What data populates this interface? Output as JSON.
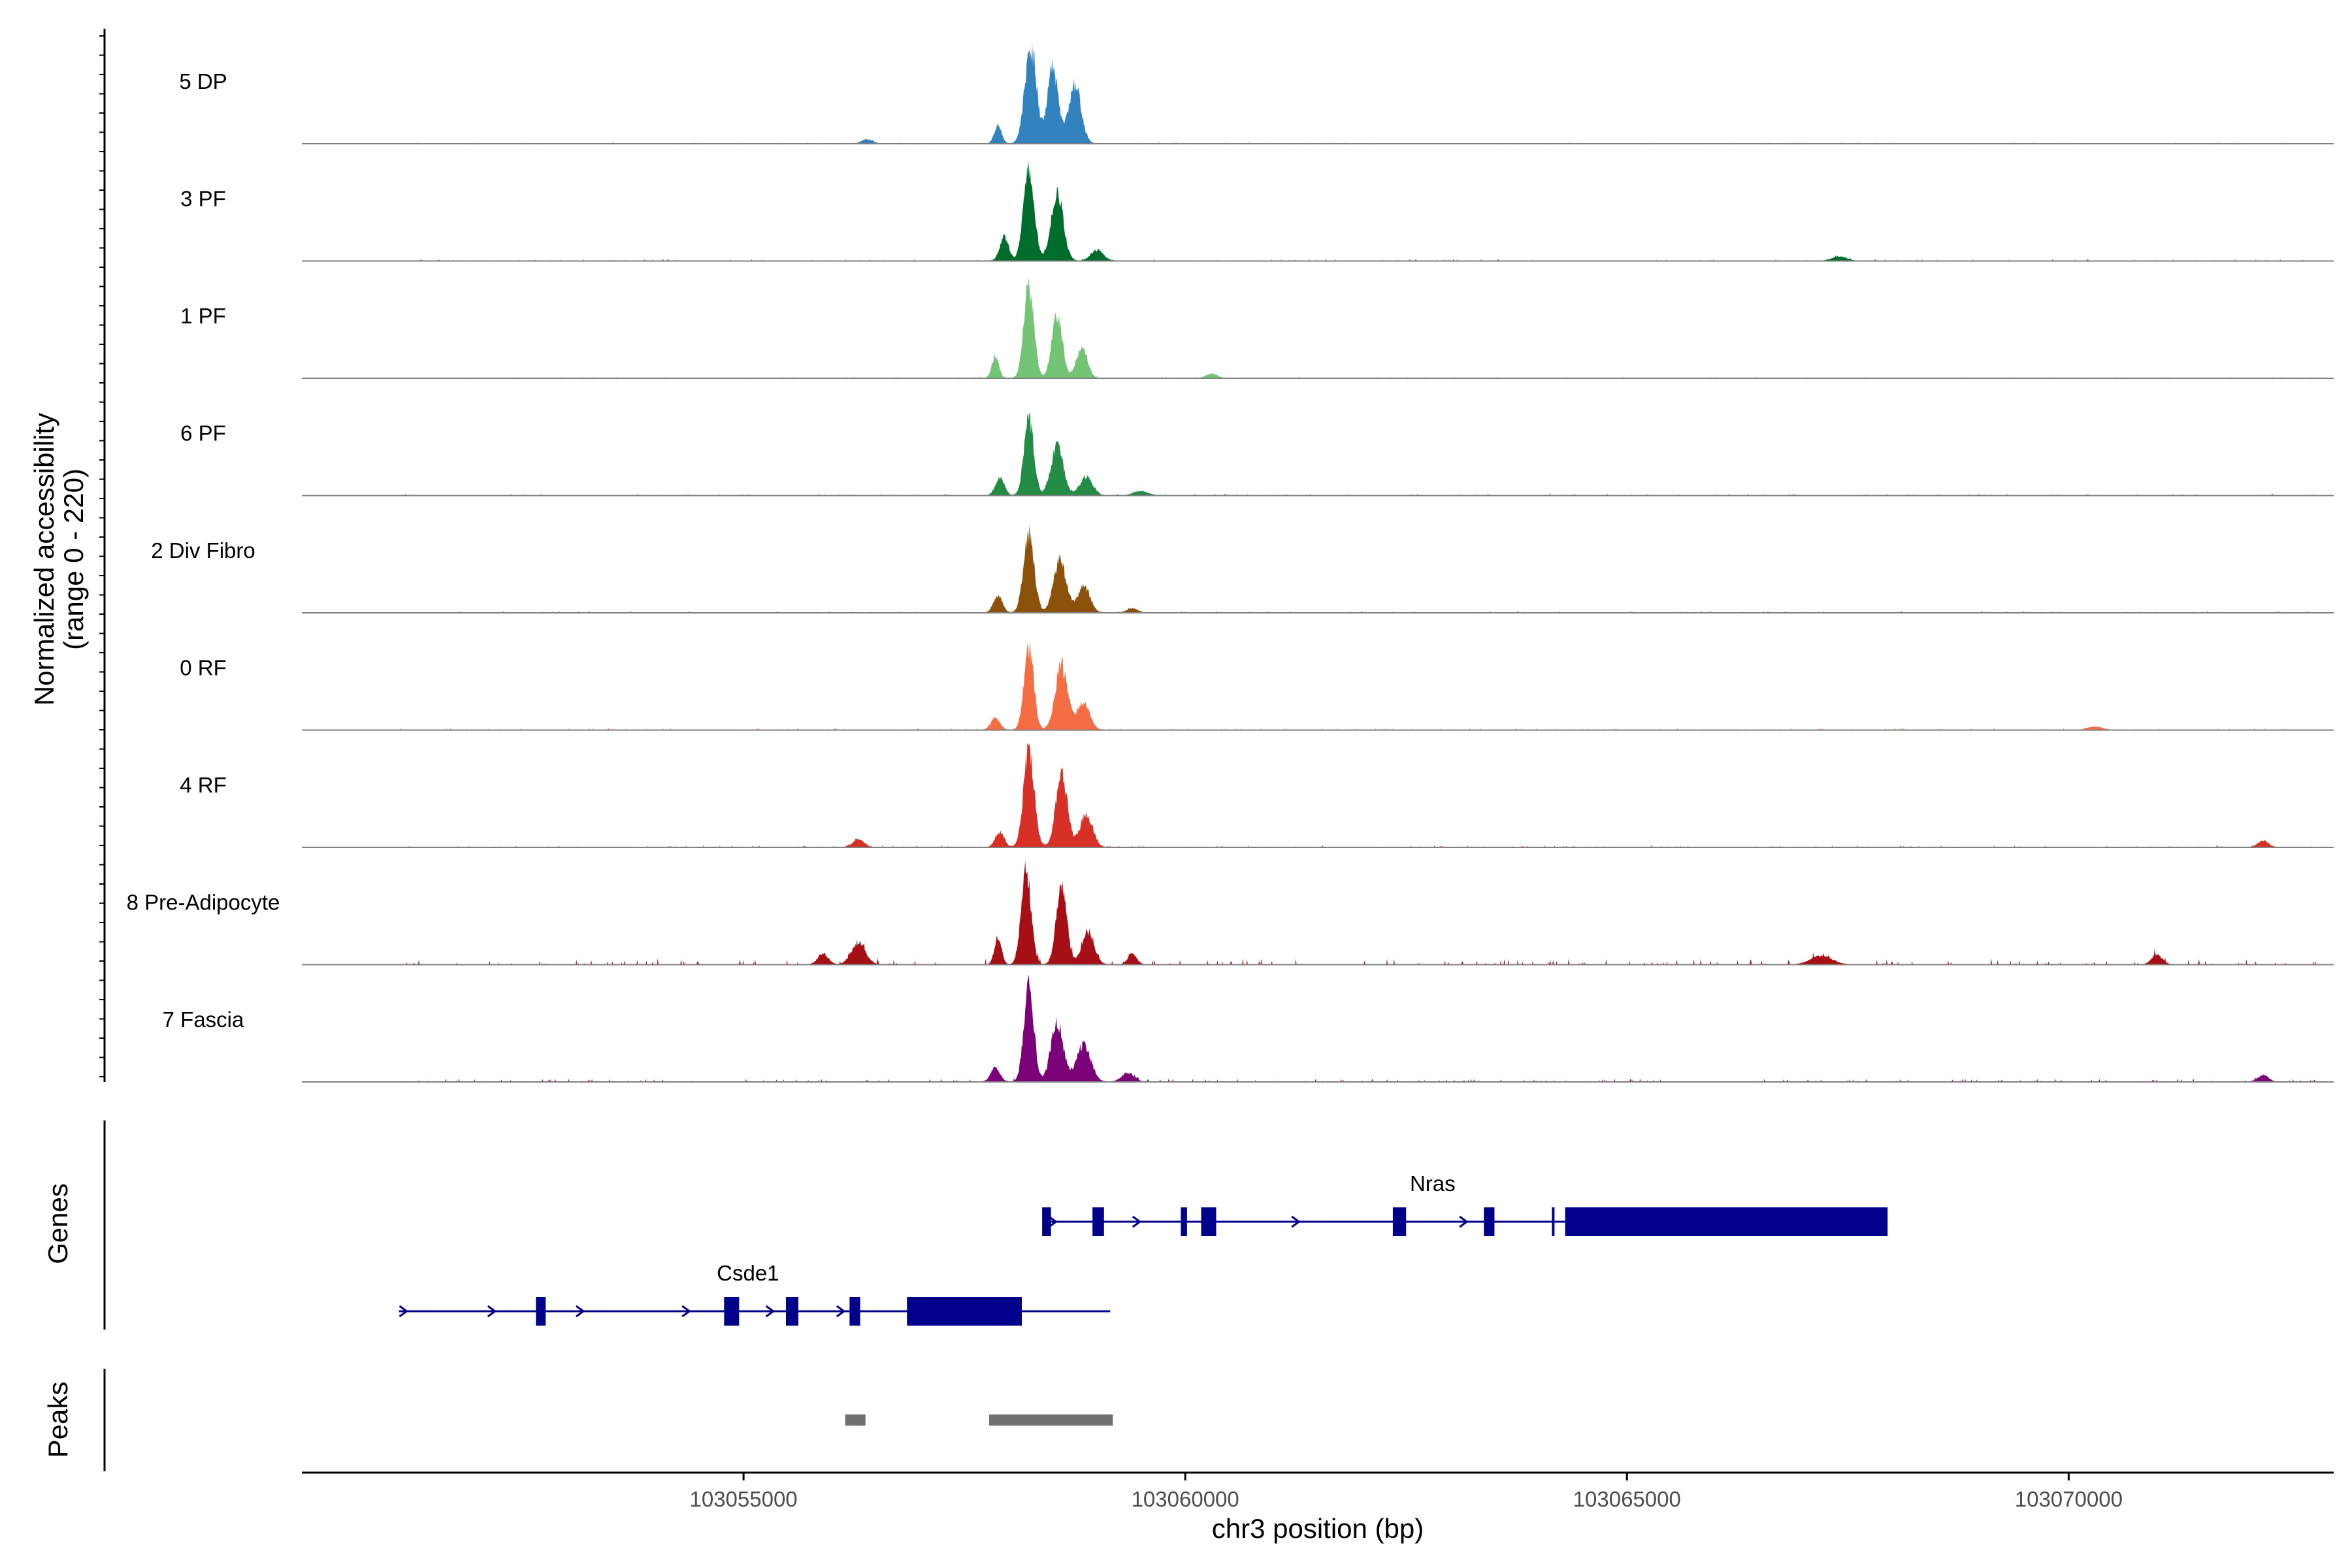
{
  "chart_data": {
    "type": "area",
    "x_label": "chr3 position (bp)",
    "x_range": [
      103050000,
      103073000
    ],
    "x_ticks": [
      "103055000",
      "103060000",
      "103065000",
      "103070000"
    ],
    "x_tick_values": [
      103055000,
      103060000,
      103065000,
      103070000
    ],
    "y_label_line1": "Normalized accessibility",
    "y_label_line2": "(range 0 - 220)",
    "y_range": [
      0,
      220
    ],
    "data_range": [
      103051100,
      103072800
    ],
    "series": [
      {
        "name": "5 DP",
        "color": "#3182bd",
        "seed": 11,
        "noise": 0.25,
        "peaks": [
          [
            103058250,
            90,
            65
          ],
          [
            103058500,
            70,
            60
          ],
          [
            103058750,
            55,
            70
          ],
          [
            103057880,
            18,
            40
          ],
          [
            103056400,
            4,
            60
          ]
        ]
      },
      {
        "name": "3 PF",
        "color": "#006d2c",
        "seed": 23,
        "noise": 0.35,
        "peaks": [
          [
            103058230,
            88,
            60
          ],
          [
            103058550,
            62,
            70
          ],
          [
            103057950,
            22,
            50
          ],
          [
            103059000,
            10,
            70
          ],
          [
            103067400,
            4,
            80
          ]
        ]
      },
      {
        "name": "1 PF",
        "color": "#74c476",
        "seed": 37,
        "noise": 0.3,
        "peaks": [
          [
            103058230,
            90,
            55
          ],
          [
            103058550,
            58,
            60
          ],
          [
            103058830,
            30,
            60
          ],
          [
            103057850,
            20,
            40
          ],
          [
            103060300,
            4,
            60
          ]
        ]
      },
      {
        "name": "6 PF",
        "color": "#238b45",
        "seed": 41,
        "noise": 0.4,
        "peaks": [
          [
            103058230,
            72,
            55
          ],
          [
            103058550,
            45,
            70
          ],
          [
            103058880,
            18,
            70
          ],
          [
            103057900,
            16,
            50
          ],
          [
            103059500,
            4,
            80
          ]
        ]
      },
      {
        "name": "2 Div Fibro",
        "color": "#8c510a",
        "seed": 53,
        "noise": 0.4,
        "peaks": [
          [
            103058230,
            72,
            60
          ],
          [
            103058580,
            50,
            70
          ],
          [
            103058850,
            25,
            70
          ],
          [
            103057880,
            16,
            50
          ],
          [
            103059400,
            4,
            60
          ]
        ]
      },
      {
        "name": "0 RF",
        "color": "#f46d43",
        "seed": 67,
        "noise": 0.4,
        "peaks": [
          [
            103058230,
            75,
            55
          ],
          [
            103058600,
            60,
            70
          ],
          [
            103058850,
            25,
            70
          ],
          [
            103057850,
            12,
            50
          ],
          [
            103070300,
            3,
            80
          ]
        ]
      },
      {
        "name": "4 RF",
        "color": "#d73027",
        "seed": 71,
        "noise": 0.45,
        "peaks": [
          [
            103058230,
            90,
            60
          ],
          [
            103058600,
            68,
            65
          ],
          [
            103058880,
            30,
            70
          ],
          [
            103057900,
            14,
            50
          ],
          [
            103056300,
            8,
            60
          ],
          [
            103072200,
            6,
            60
          ]
        ]
      },
      {
        "name": "8 Pre-Adipocyte",
        "color": "#a50f15",
        "seed": 83,
        "noise": 1.5,
        "peaks": [
          [
            103058200,
            88,
            55
          ],
          [
            103058600,
            70,
            60
          ],
          [
            103058900,
            30,
            70
          ],
          [
            103057880,
            25,
            40
          ],
          [
            103056300,
            20,
            80
          ],
          [
            103055900,
            10,
            60
          ],
          [
            103059400,
            10,
            50
          ],
          [
            103067200,
            8,
            120
          ],
          [
            103071000,
            9,
            60
          ]
        ]
      },
      {
        "name": "7 Fascia",
        "color": "#7a0177",
        "seed": 97,
        "noise": 0.8,
        "peaks": [
          [
            103058230,
            92,
            55
          ],
          [
            103058550,
            55,
            70
          ],
          [
            103058850,
            35,
            80
          ],
          [
            103057850,
            14,
            50
          ],
          [
            103059350,
            8,
            70
          ],
          [
            103072200,
            6,
            60
          ]
        ]
      }
    ],
    "genes_track_label": "Genes",
    "genes": [
      {
        "name": "Nras",
        "color": "#00008b",
        "start": 103058400,
        "end": 103067950,
        "row": 0,
        "exons": [
          [
            103058380,
            103058480
          ],
          [
            103058950,
            103059080
          ],
          [
            103059950,
            103060020
          ],
          [
            103060180,
            103060350
          ],
          [
            103062350,
            103062500
          ],
          [
            103063380,
            103063500
          ],
          [
            103064150,
            103064180
          ],
          [
            103064300,
            103067950
          ]
        ],
        "arrows": [
          103058500,
          103059450,
          103061250,
          103063150
        ]
      },
      {
        "name": "Csde1",
        "color": "#00008b",
        "start": 103051100,
        "end": 103059150,
        "row": 1,
        "exons": [
          [
            103052650,
            103052760
          ],
          [
            103054780,
            103054950
          ],
          [
            103055480,
            103055620
          ],
          [
            103056200,
            103056320
          ],
          [
            103056850,
            103058150
          ]
        ],
        "arrows": [
          103051150,
          103052150,
          103053150,
          103054350,
          103055300,
          103056100
        ]
      }
    ],
    "peaks_track_label": "Peaks",
    "peaks": [
      [
        103056150,
        103056380
      ],
      [
        103057780,
        103059180
      ]
    ],
    "peak_color": "#707070"
  }
}
